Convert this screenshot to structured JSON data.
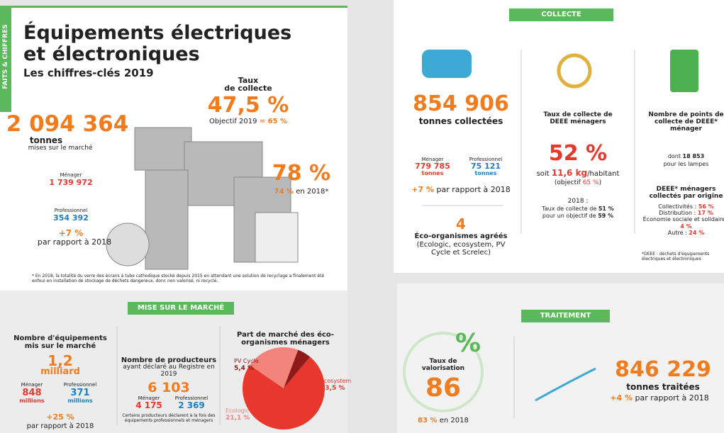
{
  "sidebar": "FAITS & CHIFFRES",
  "header": {
    "title_line1": "Équipements électriques",
    "title_line2": "et électroniques",
    "subtitle": "Les chiffres-clés 2019"
  },
  "market": {
    "value": "2 094 364",
    "unit": "tonnes",
    "desc": "mises sur le marché",
    "menager_label": "Ménager",
    "menager_value": "1 739 972",
    "pro_label": "Professionnel",
    "pro_value": "354 392",
    "change": "+7 %",
    "change_desc": "par rapport à 2018"
  },
  "collection_rate": {
    "label1": "Taux",
    "label2": "de collecte",
    "value": "47,5 %",
    "objective_text": "Objectif 2019",
    "objective_value": "= 65 %"
  },
  "rate78": {
    "value": "78 %",
    "prev_value": "74 %",
    "prev_text": "en 2018*"
  },
  "footnote": "* En 2018, la totalité du verre des écrans à tube cathodique stocké depuis 2015 en attendant une solution de recyclage a finalement été enfoui en installation de stockage de déchets dangereux, donc non valorisé, ni recyclé.",
  "mise": {
    "banner": "MISE SUR LE MARCHÉ",
    "equipment": {
      "title": "Nombre d'équipements mis sur le marché",
      "value": "1,2",
      "unit": "milliard",
      "menager_label": "Ménager",
      "menager_value": "848",
      "menager_unit": "millions",
      "pro_label": "Professionnel",
      "pro_value": "371",
      "pro_unit": "millions",
      "change": "+25 %",
      "change_desc": "par rapport à 2018"
    },
    "producers": {
      "title": "Nombre de producteurs",
      "desc": "ayant déclaré au Registre en 2019",
      "value": "6 103",
      "menager_label": "Ménager",
      "menager_value": "4 175",
      "pro_label": "Professionnel",
      "pro_value": "2 369",
      "note": "Certains producteurs déclarent à la fois des équipements professionnels et ménagers"
    },
    "market_share": {
      "title": "Part de marché des éco-organismes ménagers",
      "slices": [
        {
          "name": "ecosystem",
          "value": 73.5,
          "value_label": "73,5 %",
          "color": "#e8372c"
        },
        {
          "name": "Ecologic",
          "value": 21.1,
          "value_label": "21,1 %",
          "color": "#f3847c"
        },
        {
          "name": "PV Cycle",
          "value": 5.4,
          "value_label": "5,4 %",
          "color": "#8e1b17"
        }
      ]
    }
  },
  "collecte": {
    "banner": "COLLECTE",
    "value": "854 906",
    "unit": "tonnes collectées",
    "menager_label": "Ménager",
    "menager_value": "779 785",
    "menager_unit": "tonnes",
    "pro_label": "Professionnel",
    "pro_value": "75 121",
    "pro_unit": "tonnes",
    "change": "+7 %",
    "change_desc": "par rapport à 2018",
    "orgs_value": "4",
    "orgs_title": "Éco-organismes agréés",
    "orgs_list": "(Ecologic, ecosystem, PV Cycle et Screlec)",
    "rate_title": "Taux de collecte de DEEE ménagers",
    "rate_value": "52 %",
    "rate_soit": "soit",
    "rate_kg": "11,6 kg",
    "rate_per": "/habitant",
    "rate_obj": "(objectif",
    "rate_obj_value": "65 %",
    "rate_obj_end": ")",
    "prev_year": "2018 :",
    "prev_rate": "Taux de collecte de",
    "prev_rate_value": "51 %",
    "prev_obj": "pour un objectif de",
    "prev_obj_value": "59 %",
    "points_title": "Nombre de points de collecte de DEEE* ménager",
    "points_dont": "dont",
    "points_value": "18 853",
    "points_desc": "pour les lampes",
    "origin_title": "DEEE* ménagers collectés par origine",
    "origins": [
      {
        "label": "Collectivités :",
        "value": "56 %"
      },
      {
        "label": "Distribution :",
        "value": "17 %"
      },
      {
        "label": "Économie sociale et solidaire :",
        "value": "4 %"
      },
      {
        "label": "Autre :",
        "value": "24 %"
      }
    ],
    "deee_note": "*DEEE : déchets d'équipements électriques et électroniques"
  },
  "traitement": {
    "banner": "TRAITEMENT",
    "pct_symbol": "%",
    "val_title": "Taux de valorisation",
    "val_value": "86",
    "prev_value": "83 %",
    "prev_text": "en 2018",
    "value": "846 229",
    "unit": "tonnes traitées",
    "change": "+4 %",
    "change_desc": "par rapport à 2018"
  }
}
